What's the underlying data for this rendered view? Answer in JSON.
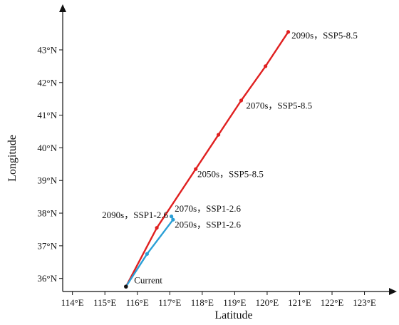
{
  "chart_data": {
    "type": "line",
    "xlabel": "Latitude",
    "ylabel": "Longitude",
    "xlim": [
      113.7,
      123.8
    ],
    "ylim": [
      35.6,
      44.2
    ],
    "x_ticks": [
      114,
      115,
      116,
      117,
      118,
      119,
      120,
      121,
      122,
      123
    ],
    "x_tick_labels": [
      "114°E",
      "115°E",
      "116°E",
      "117°E",
      "118°E",
      "119°E",
      "120°E",
      "121°E",
      "122°E",
      "123°E"
    ],
    "y_ticks": [
      36,
      37,
      38,
      39,
      40,
      41,
      42,
      43
    ],
    "y_tick_labels": [
      "36°N",
      "37°N",
      "38°N",
      "39°N",
      "40°N",
      "41°N",
      "42°N",
      "43°N"
    ],
    "grid": false,
    "series": [
      {
        "color": "#e02020",
        "points": [
          {
            "x": 115.65,
            "y": 35.75
          },
          {
            "x": 116.6,
            "y": 37.55
          },
          {
            "x": 117.8,
            "y": 39.35
          },
          {
            "x": 118.5,
            "y": 40.4
          },
          {
            "x": 119.2,
            "y": 41.45
          },
          {
            "x": 119.95,
            "y": 42.5
          },
          {
            "x": 120.65,
            "y": 43.55
          }
        ]
      },
      {
        "color": "#2a9fd6",
        "points": [
          {
            "x": 115.65,
            "y": 35.75
          },
          {
            "x": 116.3,
            "y": 36.75
          },
          {
            "x": 117.1,
            "y": 37.8
          },
          {
            "x": 117.05,
            "y": 37.9
          }
        ]
      }
    ],
    "annotations": [
      {
        "text": "2090s，SSP5-8.5",
        "x": 120.75,
        "y": 43.35,
        "anchor": "start"
      },
      {
        "text": "2070s，SSP5-8.5",
        "x": 119.35,
        "y": 41.2,
        "anchor": "start"
      },
      {
        "text": "2050s，SSP5-8.5",
        "x": 117.85,
        "y": 39.1,
        "anchor": "start"
      },
      {
        "text": "2070s，SSP1-2.6",
        "x": 117.15,
        "y": 38.05,
        "anchor": "start"
      },
      {
        "text": "2090s，SSP1-2.6",
        "x": 116.95,
        "y": 37.85,
        "anchor": "end"
      },
      {
        "text": "2050s，SSP1-2.6",
        "x": 117.15,
        "y": 37.55,
        "anchor": "start"
      },
      {
        "text": "Current",
        "x": 115.9,
        "y": 35.85,
        "anchor": "start"
      }
    ]
  }
}
